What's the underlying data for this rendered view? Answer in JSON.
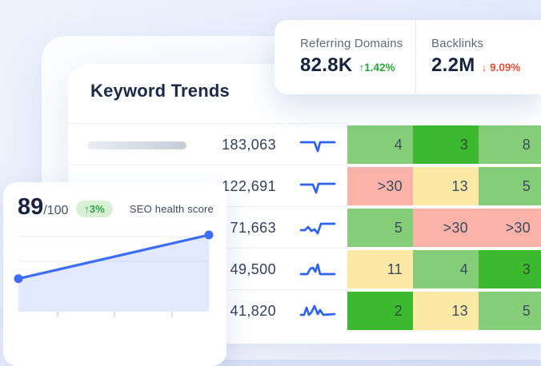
{
  "stats_card": {
    "items": [
      {
        "label": "Referring Domains",
        "value": "82.8K",
        "arrow": "↑",
        "delta": "1.42%",
        "direction": "up"
      },
      {
        "label": "Backlinks",
        "value": "2.2M",
        "arrow": "↓",
        "delta": "9.09%",
        "direction": "down"
      }
    ]
  },
  "keyword_trends": {
    "title": "Keyword Trends",
    "rows": [
      {
        "volume": "183,063",
        "spark_points": [
          [
            3,
            7
          ],
          [
            20,
            7
          ],
          [
            24,
            18
          ],
          [
            27,
            7
          ],
          [
            45,
            7
          ]
        ],
        "cells": [
          {
            "value": "4",
            "tone": "green-light"
          },
          {
            "value": "3",
            "tone": "green"
          },
          {
            "value": "8",
            "tone": "green-light"
          }
        ]
      },
      {
        "volume": "122,691",
        "spark_points": [
          [
            3,
            8
          ],
          [
            18,
            8
          ],
          [
            22,
            18
          ],
          [
            25,
            7
          ],
          [
            45,
            7
          ]
        ],
        "cells": [
          {
            "value": ">30",
            "tone": "red"
          },
          {
            "value": "13",
            "tone": "yellow"
          },
          {
            "value": "5",
            "tone": "green-light"
          }
        ]
      },
      {
        "volume": "71,663",
        "spark_points": [
          [
            3,
            13
          ],
          [
            8,
            13
          ],
          [
            12,
            9
          ],
          [
            16,
            14
          ],
          [
            20,
            12
          ],
          [
            24,
            17
          ],
          [
            28,
            5
          ],
          [
            45,
            5
          ]
        ],
        "cells": [
          {
            "value": "5",
            "tone": "green-light"
          },
          {
            "value": ">30",
            "tone": "red"
          },
          {
            "value": ">30",
            "tone": "red"
          }
        ]
      },
      {
        "volume": "49,500",
        "spark_points": [
          [
            3,
            16
          ],
          [
            11,
            16
          ],
          [
            15,
            9
          ],
          [
            18,
            8
          ],
          [
            21,
            13
          ],
          [
            24,
            4
          ],
          [
            27,
            16
          ],
          [
            45,
            16
          ]
        ],
        "cells": [
          {
            "value": "11",
            "tone": "yellow"
          },
          {
            "value": "4",
            "tone": "green-light"
          },
          {
            "value": "3",
            "tone": "green"
          }
        ]
      },
      {
        "volume": "41,820",
        "spark_points": [
          [
            3,
            15
          ],
          [
            7,
            15
          ],
          [
            10,
            6
          ],
          [
            13,
            15
          ],
          [
            16,
            12
          ],
          [
            20,
            4
          ],
          [
            24,
            14
          ],
          [
            27,
            9
          ],
          [
            31,
            15
          ],
          [
            45,
            14
          ]
        ],
        "cells": [
          {
            "value": "2",
            "tone": "green"
          },
          {
            "value": "13",
            "tone": "yellow"
          },
          {
            "value": "5",
            "tone": "green-light"
          }
        ]
      }
    ]
  },
  "seo_card": {
    "score": "89",
    "score_max": "/100",
    "delta_arrow": "↑",
    "delta": "3%",
    "label": "SEO health score",
    "chart_data": {
      "type": "line",
      "points_norm": [
        [
          0,
          0.43
        ],
        [
          1,
          1.0
        ]
      ],
      "description": "upward trend line with area fill, endpoint dots, 2 horizontal gridlines, 3 bottom axis ticks"
    }
  },
  "colors": {
    "accent_blue": "#2e62f1",
    "cell_green": "#3cb92f",
    "cell_green_light": "#85cd78",
    "cell_red": "#fbb3a9",
    "cell_yellow": "#fde9a6",
    "delta_up": "#27a83c",
    "delta_down": "#e8503c",
    "heading_navy": "#1b2a47"
  }
}
